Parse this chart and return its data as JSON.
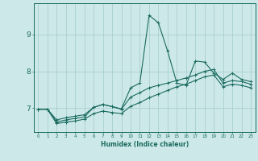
{
  "xlabel": "Humidex (Indice chaleur)",
  "background_color": "#cde8e8",
  "grid_color": "#aad0d0",
  "line_color": "#1a6b60",
  "x_values": [
    0,
    1,
    2,
    3,
    4,
    5,
    6,
    7,
    8,
    9,
    10,
    11,
    12,
    13,
    14,
    15,
    16,
    17,
    18,
    19,
    20,
    21,
    22,
    23
  ],
  "line1": [
    6.97,
    6.97,
    6.62,
    6.68,
    6.72,
    6.76,
    7.02,
    7.1,
    7.04,
    6.98,
    7.55,
    7.68,
    9.52,
    9.32,
    8.55,
    7.68,
    7.62,
    8.28,
    8.25,
    7.95,
    7.78,
    7.95,
    7.78,
    7.72
  ],
  "line2": [
    6.97,
    6.97,
    6.68,
    6.74,
    6.78,
    6.82,
    7.02,
    7.1,
    7.04,
    6.97,
    7.3,
    7.42,
    7.55,
    7.62,
    7.68,
    7.75,
    7.82,
    7.9,
    8.0,
    8.05,
    7.68,
    7.75,
    7.72,
    7.65
  ],
  "line3": [
    6.97,
    6.97,
    6.58,
    6.62,
    6.65,
    6.7,
    6.85,
    6.92,
    6.88,
    6.85,
    7.05,
    7.15,
    7.28,
    7.38,
    7.48,
    7.58,
    7.65,
    7.75,
    7.85,
    7.9,
    7.58,
    7.65,
    7.62,
    7.55
  ],
  "yticks": [
    7,
    8,
    9
  ],
  "xticks": [
    0,
    1,
    2,
    3,
    4,
    5,
    6,
    7,
    8,
    9,
    10,
    11,
    12,
    13,
    14,
    15,
    16,
    17,
    18,
    19,
    20,
    21,
    22,
    23
  ],
  "ylim": [
    6.35,
    9.85
  ],
  "xlim": [
    -0.5,
    23.5
  ]
}
